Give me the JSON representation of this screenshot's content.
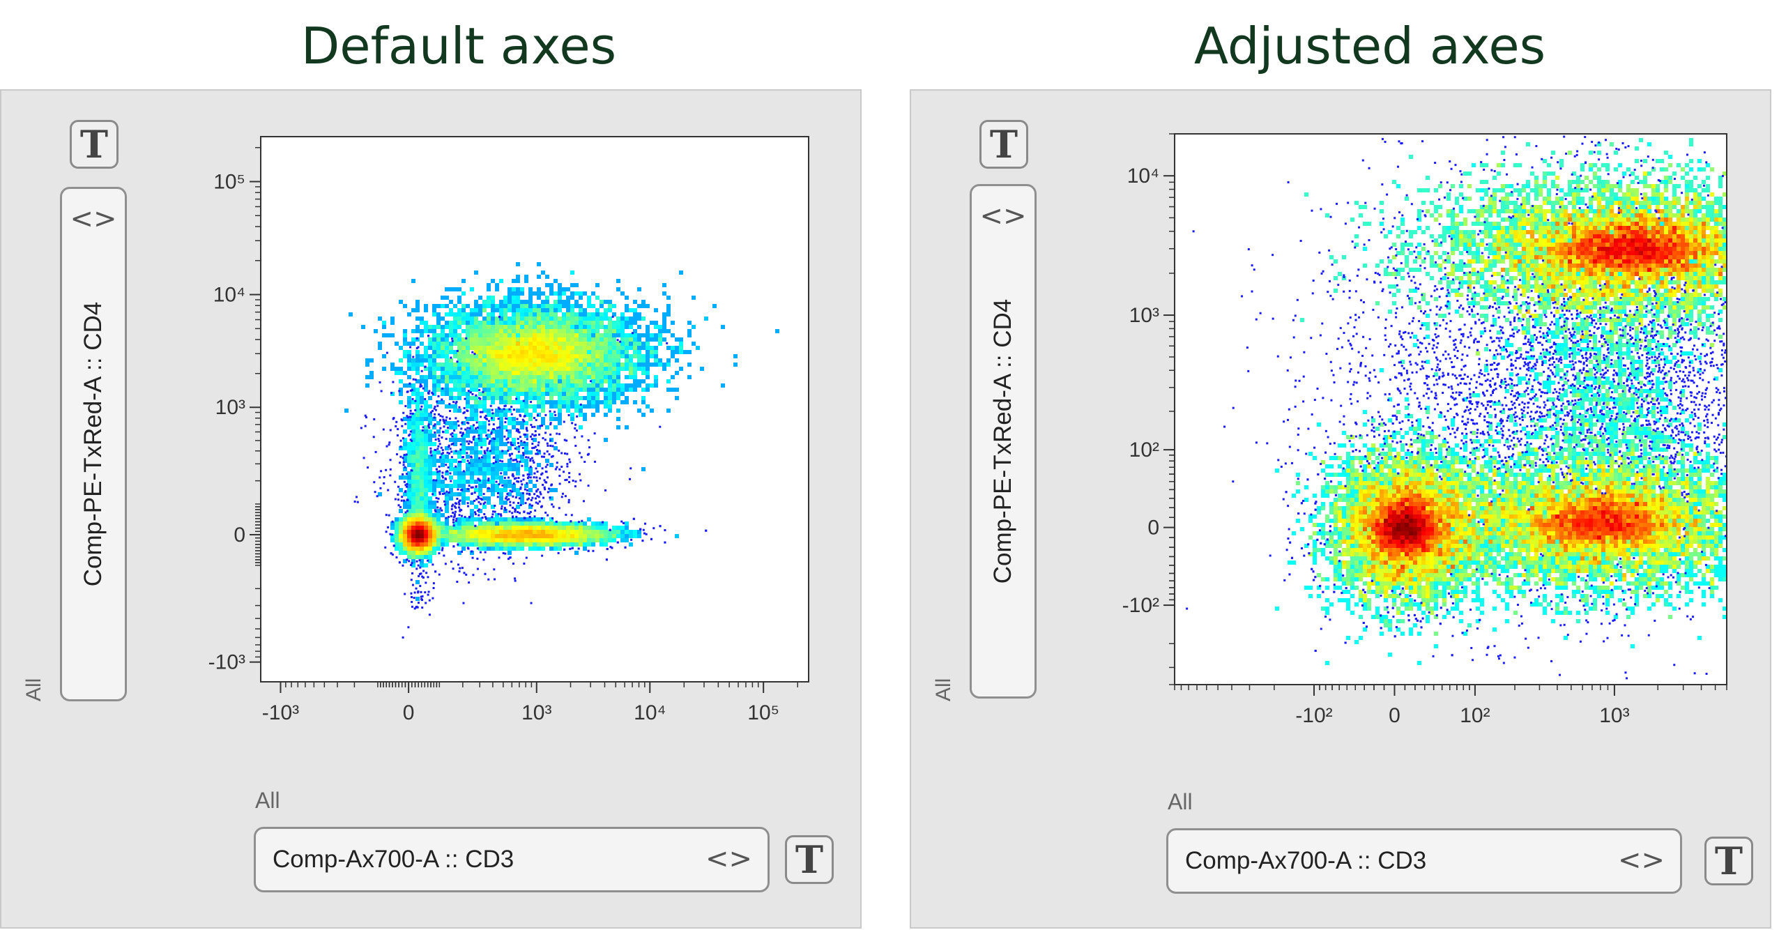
{
  "headings": {
    "left": "Default axes",
    "right": "Adjusted axes"
  },
  "panels": {
    "left": {
      "y_selector": {
        "label": "Comp-PE-TxRed-A :: CD4",
        "icon": "chevron-updown-icon"
      },
      "x_selector": {
        "label": "Comp-Ax700-A :: CD3",
        "icon": "chevron-updown-icon"
      },
      "population_label_y": "All",
      "population_label_x": "All",
      "text_button_label": "T"
    },
    "right": {
      "y_selector": {
        "label": "Comp-PE-TxRed-A :: CD4",
        "icon": "chevron-updown-icon"
      },
      "x_selector": {
        "label": "Comp-Ax700-A :: CD3",
        "icon": "chevron-updown-icon"
      },
      "population_label_y": "All",
      "population_label_x": "All",
      "text_button_label": "T"
    }
  },
  "colors": {
    "heading": "#12391f",
    "density_low": "#0000ff",
    "density_high": "#ff0000"
  },
  "chart_data": [
    {
      "type": "scatter",
      "title": "Default axes",
      "xlabel": "Comp-Ax700-A :: CD3",
      "ylabel": "Comp-PE-TxRed-A :: CD4",
      "scale": "biexponential",
      "x_ticks": [
        "-10³",
        "0",
        "10³",
        "10⁴",
        "10⁵"
      ],
      "y_ticks": [
        "10⁵",
        "10⁴",
        "10³",
        "0",
        "-10³"
      ],
      "xlim": [
        -1500,
        250000
      ],
      "ylim": [
        -1500,
        250000
      ],
      "populations": [
        {
          "name": "",
          "x_center": 30,
          "y_center": 0,
          "density": "highest"
        },
        {
          "name": "",
          "x_center": 800,
          "y_center": 0,
          "density": "high"
        },
        {
          "name": "",
          "x_center": 1000,
          "y_center": 3000,
          "density": "high"
        }
      ]
    },
    {
      "type": "scatter",
      "title": "Adjusted axes",
      "xlabel": "Comp-Ax700-A :: CD3",
      "ylabel": "Comp-PE-TxRed-A :: CD4",
      "scale": "biexponential",
      "x_ticks": [
        "-10²",
        "0",
        "10²",
        "10³"
      ],
      "y_ticks": [
        "10⁴",
        "10³",
        "10²",
        "0",
        "-10²"
      ],
      "xlim": [
        -1000,
        6000
      ],
      "ylim": [
        -400,
        20000
      ],
      "populations": [
        {
          "name": "",
          "x_center": 10,
          "y_center": 0,
          "density": "high"
        },
        {
          "name": "",
          "x_center": 800,
          "y_center": 5,
          "density": "high"
        },
        {
          "name": "",
          "x_center": 1300,
          "y_center": 3000,
          "density": "highest"
        }
      ]
    }
  ]
}
